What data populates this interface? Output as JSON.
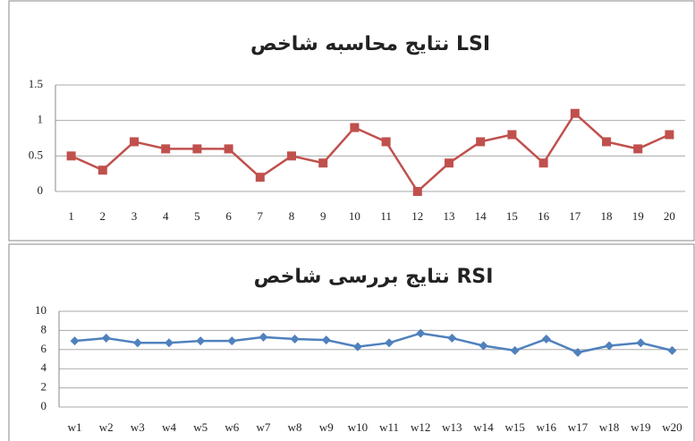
{
  "chart_data": [
    {
      "type": "line",
      "title": "نتایج محاسبه شاخص LSI",
      "categories": [
        "1",
        "2",
        "3",
        "4",
        "5",
        "6",
        "7",
        "8",
        "9",
        "10",
        "11",
        "12",
        "13",
        "14",
        "15",
        "16",
        "17",
        "18",
        "19",
        "20"
      ],
      "series": [
        {
          "color": "#c0504d",
          "marker": "square",
          "values": [
            0.5,
            0.3,
            0.7,
            0.6,
            0.6,
            0.6,
            0.2,
            0.5,
            0.4,
            0.9,
            0.7,
            0,
            0.4,
            0.7,
            0.8,
            0.4,
            1.1,
            0.7,
            0.6,
            0.8
          ]
        }
      ],
      "ylim": [
        0,
        1.5
      ],
      "yticks": [
        0,
        0.5,
        1,
        1.5
      ],
      "grid": true
    },
    {
      "type": "line",
      "title": "نتایج بررسی شاخص RSI",
      "categories": [
        "w1",
        "w2",
        "w3",
        "w4",
        "w5",
        "w6",
        "w7",
        "w8",
        "w9",
        "w10",
        "w11",
        "w12",
        "w13",
        "w14",
        "w15",
        "w16",
        "w17",
        "w18",
        "w19",
        "w20"
      ],
      "series": [
        {
          "color": "#4f81bd",
          "marker": "diamond",
          "values": [
            6.9,
            7.2,
            6.7,
            6.7,
            6.9,
            6.9,
            7.3,
            7.1,
            7.0,
            6.3,
            6.7,
            7.7,
            7.2,
            6.4,
            5.9,
            7.1,
            5.7,
            6.4,
            6.7,
            5.9
          ]
        }
      ],
      "ylim": [
        0,
        10
      ],
      "yticks": [
        0,
        2,
        4,
        6,
        8,
        10
      ],
      "grid": true
    }
  ]
}
